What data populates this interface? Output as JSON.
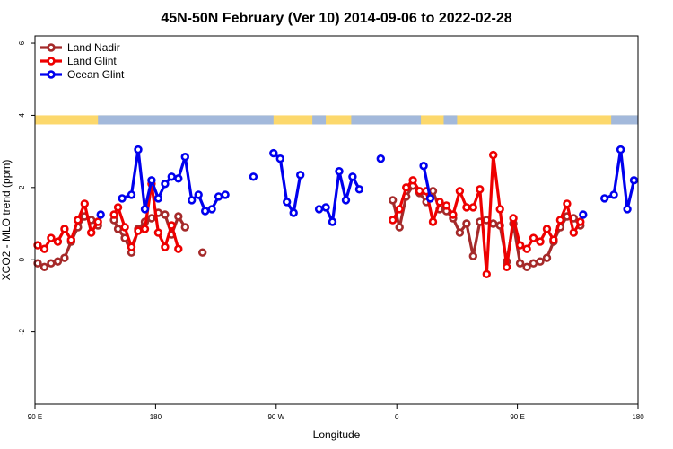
{
  "chart_data": {
    "type": "line",
    "title": "45N-50N February (Ver 10)   2014-09-06 to 2022-02-28",
    "xlabel": "Longitude",
    "ylabel": "XCO2 - MLO trend (ppm)",
    "xlim": [
      90,
      540
    ],
    "ylim": [
      -4,
      6.2
    ],
    "x_ticks": [
      {
        "value": 90,
        "label": "90 E"
      },
      {
        "value": 180,
        "label": "180"
      },
      {
        "value": 270,
        "label": "90 W"
      },
      {
        "value": 360,
        "label": "0"
      },
      {
        "value": 450,
        "label": "90 E"
      },
      {
        "value": 540,
        "label": "180"
      }
    ],
    "y_ticks": [
      {
        "value": -2,
        "label": "-2"
      },
      {
        "value": 0,
        "label": "0"
      },
      {
        "value": 2,
        "label": "2"
      },
      {
        "value": 4,
        "label": "4"
      },
      {
        "value": 6,
        "label": "6"
      }
    ],
    "legend_position": "top-left",
    "land_band": {
      "y_range": [
        3.75,
        4.0
      ],
      "land_color": "#fcd86c",
      "ocean_color": "#a3b9db",
      "ocean_segments": [
        [
          137,
          268
        ],
        [
          297,
          307
        ],
        [
          326,
          378
        ],
        [
          395,
          405
        ],
        [
          520,
          540
        ]
      ]
    },
    "series": [
      {
        "name": "Land Nadir",
        "color": "#a52a2a",
        "points": [
          [
            92,
            -0.1
          ],
          [
            97,
            -0.2
          ],
          [
            102,
            -0.1
          ],
          [
            107,
            -0.05
          ],
          [
            112,
            0.05
          ],
          [
            117,
            0.5
          ],
          [
            122,
            0.9
          ],
          [
            127,
            1.2
          ],
          [
            132,
            1.1
          ],
          [
            137,
            0.95
          ],
          null,
          [
            149,
            1.1
          ],
          [
            152,
            0.85
          ],
          [
            157,
            0.6
          ],
          [
            162,
            0.2
          ],
          [
            167,
            0.85
          ],
          [
            172,
            1.05
          ],
          [
            177,
            1.15
          ],
          [
            182,
            1.3
          ],
          [
            187,
            1.25
          ],
          [
            192,
            0.7
          ],
          [
            197,
            1.2
          ],
          [
            202,
            0.9
          ],
          null,
          [
            215,
            0.2
          ],
          null,
          [
            357,
            1.65
          ],
          [
            362,
            0.9
          ],
          [
            367,
            1.75
          ],
          [
            372,
            2.05
          ],
          [
            377,
            1.85
          ],
          [
            382,
            1.6
          ],
          [
            387,
            1.9
          ],
          [
            392,
            1.4
          ],
          [
            397,
            1.35
          ],
          [
            402,
            1.15
          ],
          [
            407,
            0.75
          ],
          [
            412,
            1.0
          ],
          [
            417,
            0.1
          ],
          [
            422,
            1.05
          ],
          [
            427,
            1.1
          ],
          [
            432,
            1.0
          ],
          [
            437,
            0.95
          ],
          [
            442,
            -0.05
          ],
          [
            447,
            1.0
          ],
          [
            452,
            -0.1
          ],
          [
            457,
            -0.2
          ],
          [
            462,
            -0.1
          ],
          [
            467,
            -0.05
          ],
          [
            472,
            0.05
          ],
          [
            477,
            0.5
          ],
          [
            482,
            0.9
          ],
          [
            487,
            1.2
          ],
          [
            492,
            1.15
          ],
          [
            497,
            0.95
          ]
        ]
      },
      {
        "name": "Land Glint",
        "color": "#ee0000",
        "points": [
          [
            92,
            0.4
          ],
          [
            97,
            0.3
          ],
          [
            102,
            0.6
          ],
          [
            107,
            0.5
          ],
          [
            112,
            0.85
          ],
          [
            117,
            0.55
          ],
          [
            122,
            1.1
          ],
          [
            127,
            1.55
          ],
          [
            132,
            0.75
          ],
          [
            137,
            1.05
          ],
          null,
          [
            149,
            1.25
          ],
          [
            152,
            1.45
          ],
          [
            157,
            0.9
          ],
          [
            162,
            0.35
          ],
          [
            167,
            0.8
          ],
          [
            172,
            0.85
          ],
          [
            177,
            2.1
          ],
          [
            182,
            0.75
          ],
          [
            187,
            0.35
          ],
          [
            192,
            0.95
          ],
          [
            197,
            0.3
          ],
          null,
          [
            357,
            1.1
          ],
          [
            362,
            1.4
          ],
          [
            367,
            2.0
          ],
          [
            372,
            2.2
          ],
          [
            377,
            1.9
          ],
          [
            382,
            1.9
          ],
          [
            387,
            1.05
          ],
          [
            392,
            1.6
          ],
          [
            397,
            1.5
          ],
          [
            402,
            1.25
          ],
          [
            407,
            1.9
          ],
          [
            412,
            1.45
          ],
          [
            417,
            1.45
          ],
          [
            422,
            1.95
          ],
          [
            427,
            -0.4
          ],
          [
            432,
            2.9
          ],
          [
            437,
            1.4
          ],
          [
            442,
            -0.2
          ],
          [
            447,
            1.15
          ],
          [
            452,
            0.4
          ],
          [
            457,
            0.3
          ],
          [
            462,
            0.6
          ],
          [
            467,
            0.5
          ],
          [
            472,
            0.85
          ],
          [
            477,
            0.55
          ],
          [
            482,
            1.1
          ],
          [
            487,
            1.55
          ],
          [
            492,
            0.75
          ],
          [
            497,
            1.05
          ]
        ]
      },
      {
        "name": "Ocean Glint",
        "color": "#0000ee",
        "points": [
          [
            139,
            1.25
          ],
          null,
          [
            155,
            1.7
          ],
          [
            162,
            1.8
          ],
          [
            167,
            3.05
          ],
          [
            172,
            1.4
          ],
          [
            177,
            2.2
          ],
          [
            182,
            1.7
          ],
          [
            187,
            2.1
          ],
          [
            192,
            2.3
          ],
          [
            197,
            2.25
          ],
          [
            202,
            2.85
          ],
          [
            207,
            1.65
          ],
          [
            212,
            1.8
          ],
          [
            217,
            1.35
          ],
          [
            222,
            1.4
          ],
          [
            227,
            1.75
          ],
          [
            232,
            1.8
          ],
          null,
          [
            253,
            2.3
          ],
          null,
          [
            268,
            2.95
          ],
          [
            273,
            2.8
          ],
          [
            278,
            1.6
          ],
          [
            283,
            1.3
          ],
          [
            288,
            2.35
          ],
          null,
          [
            302,
            1.4
          ],
          [
            307,
            1.45
          ],
          [
            312,
            1.05
          ],
          [
            317,
            2.45
          ],
          [
            322,
            1.65
          ],
          [
            327,
            2.3
          ],
          [
            332,
            1.95
          ],
          null,
          [
            348,
            2.8
          ],
          null,
          [
            380,
            2.6
          ],
          [
            385,
            1.7
          ],
          null,
          [
            499,
            1.25
          ],
          null,
          [
            515,
            1.7
          ],
          [
            522,
            1.8
          ],
          [
            527,
            3.05
          ],
          [
            532,
            1.4
          ],
          [
            537,
            2.2
          ]
        ]
      }
    ]
  }
}
